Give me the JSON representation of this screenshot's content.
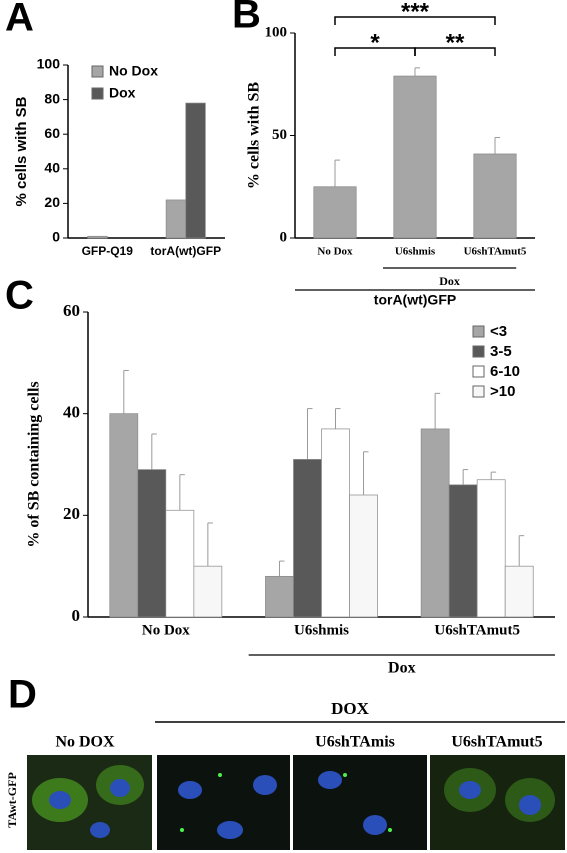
{
  "chart_data": [
    {
      "type": "bar",
      "panel_label": "A",
      "ylabel": "% cells with SB",
      "categories": [
        "GFP-Q19",
        "torA(wt)GFP"
      ],
      "series": [
        {
          "name": "No Dox",
          "color": "#a6a6a6",
          "values": [
            1,
            22
          ]
        },
        {
          "name": "Dox",
          "color": "#595959",
          "values": [
            0,
            78
          ]
        }
      ],
      "ylim": [
        0,
        100
      ],
      "yticks": [
        0,
        20,
        40,
        60,
        80,
        100
      ]
    },
    {
      "type": "bar",
      "panel_label": "B",
      "ylabel": "% cells with SB",
      "categories": [
        "No Dox",
        "U6shmis",
        "U6shTAmut5"
      ],
      "values": [
        25,
        79,
        41
      ],
      "errors": [
        13,
        4,
        8
      ],
      "color": "#a6a6a6",
      "ylim": [
        0,
        100
      ],
      "yticks": [
        0,
        50,
        100
      ],
      "annotations": [
        "*",
        "**",
        "***"
      ],
      "group_label": "Dox",
      "bottom_label": "torA(wt)GFP"
    },
    {
      "type": "bar",
      "panel_label": "C",
      "ylabel": "% of SB containing cells",
      "categories": [
        "No Dox",
        "U6shmis",
        "U6shTAmut5"
      ],
      "series": [
        {
          "name": "<3",
          "color": "#a6a6a6",
          "values": [
            40,
            8,
            37
          ],
          "errors": [
            8.5,
            3,
            7
          ]
        },
        {
          "name": "3-5",
          "color": "#595959",
          "values": [
            29,
            31,
            26
          ],
          "errors": [
            7,
            10,
            3
          ]
        },
        {
          "name": "6-10",
          "color": "#ffffff",
          "values": [
            21,
            37,
            27
          ],
          "errors": [
            7,
            4,
            1.5
          ]
        },
        {
          "name": ">10",
          "color": "#f7f7f7",
          "values": [
            10,
            24,
            10
          ],
          "errors": [
            8.5,
            8.5,
            6
          ]
        }
      ],
      "ylim": [
        0,
        60
      ],
      "yticks": [
        0,
        20,
        40,
        60
      ],
      "group_label": "Dox"
    }
  ],
  "panel_d": {
    "label": "D",
    "group_label": "DOX",
    "row_label": "TAwt-GFP",
    "column_labels": [
      "No DOX",
      "U6shTAmis",
      "U6shTAmut5"
    ]
  }
}
